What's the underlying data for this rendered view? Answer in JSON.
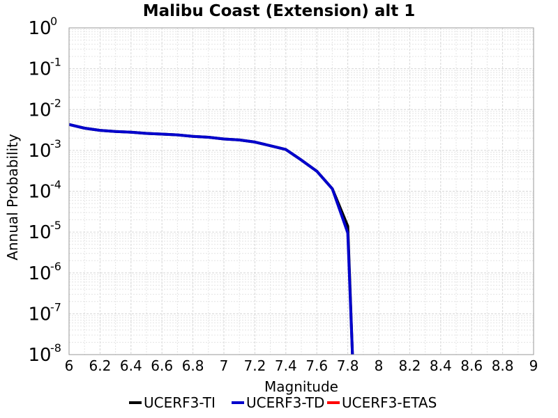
{
  "chart_data": {
    "type": "line",
    "title": "Malibu Coast (Extension) alt 1",
    "xlabel": "Magnitude",
    "ylabel": "Annual Probability",
    "xlim": [
      6,
      9
    ],
    "ylim": [
      1e-08,
      1
    ],
    "yscale": "log",
    "grid": true,
    "legend_position": "bottom",
    "x_ticks": [
      "6",
      "6.2",
      "6.4",
      "6.6",
      "6.8",
      "7",
      "7.2",
      "7.4",
      "7.6",
      "7.8",
      "8",
      "8.2",
      "8.4",
      "8.6",
      "8.8",
      "9"
    ],
    "y_tick_exponents": [
      "0",
      "-1",
      "-2",
      "-3",
      "-4",
      "-5",
      "-6",
      "-7",
      "-8"
    ],
    "series": [
      {
        "name": "UCERF3-TI",
        "color": "#000000",
        "x": [
          6.0,
          6.1,
          6.2,
          6.3,
          6.4,
          6.5,
          6.6,
          6.7,
          6.8,
          6.9,
          7.0,
          7.1,
          7.2,
          7.3,
          7.4,
          7.5,
          7.6,
          7.7,
          7.8,
          7.83
        ],
        "y": [
          0.0043,
          0.0035,
          0.0031,
          0.0029,
          0.0028,
          0.0026,
          0.0025,
          0.0024,
          0.0022,
          0.0021,
          0.0019,
          0.0018,
          0.0016,
          0.0013,
          0.00105,
          0.00058,
          0.00031,
          0.000115,
          1.4e-05,
          1e-08
        ]
      },
      {
        "name": "UCERF3-TD",
        "color": "#0000cc",
        "x": [
          6.0,
          6.1,
          6.2,
          6.3,
          6.4,
          6.5,
          6.6,
          6.7,
          6.8,
          6.9,
          7.0,
          7.1,
          7.2,
          7.3,
          7.4,
          7.5,
          7.6,
          7.7,
          7.8,
          7.83
        ],
        "y": [
          0.0043,
          0.0035,
          0.0031,
          0.0029,
          0.0028,
          0.0026,
          0.0025,
          0.0024,
          0.0022,
          0.0021,
          0.0019,
          0.0018,
          0.0016,
          0.0013,
          0.00105,
          0.00058,
          0.00031,
          0.000115,
          9.5e-06,
          1e-08
        ]
      },
      {
        "name": "UCERF3-ETAS",
        "color": "#ff0000",
        "x": [],
        "y": []
      }
    ]
  }
}
